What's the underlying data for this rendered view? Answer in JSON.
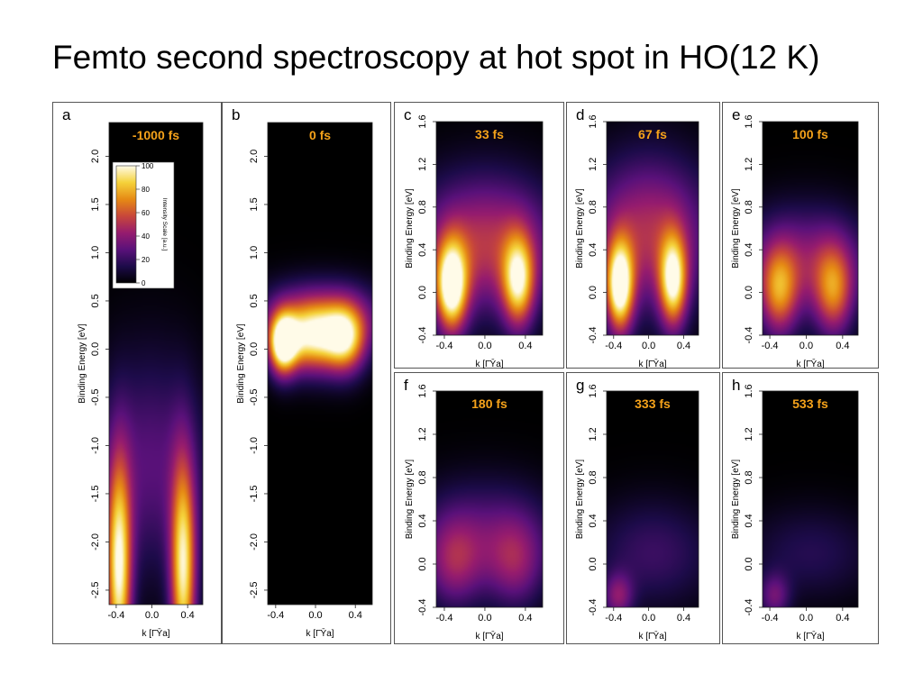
{
  "title": "Femto second spectroscopy at hot spot in HO(12 K)",
  "colors": {
    "panel_border": "#555555",
    "time_label": "#f5a21a",
    "cmap_stops": [
      "#000000",
      "#1d0b4a",
      "#5a117a",
      "#961c6e",
      "#c8473a",
      "#e68a14",
      "#f5d23a",
      "#fffbe8"
    ]
  },
  "colorbar": {
    "label": "Intensity Scale [a.u.]",
    "ticks": [
      "100",
      "80",
      "60",
      "40",
      "20",
      "0"
    ]
  },
  "chart_data": [
    {
      "type": "heatmap",
      "panel": "a",
      "time_label": "-1000 fs",
      "xlabel": "k [Γ̄Ȳa]",
      "ylabel": "Binding Energy [eV]",
      "xlim": [
        -0.48,
        0.57
      ],
      "ylim": [
        -2.65,
        2.35
      ],
      "xticks": [
        "-0.4",
        "0.0",
        "0.4"
      ],
      "xtick_values": [
        -0.4,
        0.0,
        0.4
      ],
      "yticks": [
        "2.0",
        "1.5",
        "1.0",
        "0.5",
        "0.0",
        "-0.5",
        "-1.0",
        "-1.5",
        "-2.0",
        "-2.5"
      ],
      "ytick_values": [
        2.0,
        1.5,
        1.0,
        0.5,
        0.0,
        -0.5,
        -1.0,
        -1.5,
        -2.0,
        -2.5
      ],
      "intensity_blobs": [
        {
          "k": -0.37,
          "E": -2.3,
          "sk": 0.1,
          "sE": 0.8,
          "I": 95
        },
        {
          "k": 0.35,
          "E": -2.3,
          "sk": 0.1,
          "sE": 0.8,
          "I": 90
        },
        {
          "k": -0.02,
          "E": -1.2,
          "sk": 0.45,
          "sE": 0.8,
          "I": 28
        }
      ]
    },
    {
      "type": "heatmap",
      "panel": "b",
      "time_label": "0 fs",
      "xlabel": "k [Γ̄Ȳa]",
      "ylabel": "Binding Energy [eV]",
      "xlim": [
        -0.48,
        0.57
      ],
      "ylim": [
        -2.65,
        2.35
      ],
      "xticks": [
        "-0.4",
        "0.0",
        "0.4"
      ],
      "xtick_values": [
        -0.4,
        0.0,
        0.4
      ],
      "yticks": [
        "2.0",
        "1.5",
        "1.0",
        "0.5",
        "0.0",
        "-0.5",
        "-1.0",
        "-1.5",
        "-2.0",
        "-2.5"
      ],
      "ytick_values": [
        2.0,
        1.5,
        1.0,
        0.5,
        0.0,
        -0.5,
        -1.0,
        -1.5,
        -2.0,
        -2.5
      ],
      "intensity_blobs": [
        {
          "k": -0.33,
          "E": 0.05,
          "sk": 0.1,
          "sE": 0.22,
          "I": 100
        },
        {
          "k": -0.05,
          "E": 0.1,
          "sk": 0.2,
          "sE": 0.25,
          "I": 75
        },
        {
          "k": 0.3,
          "E": 0.1,
          "sk": 0.15,
          "sE": 0.25,
          "I": 78
        },
        {
          "k": 0.05,
          "E": 0.35,
          "sk": 0.45,
          "sE": 0.25,
          "I": 40
        }
      ]
    },
    {
      "type": "heatmap",
      "panel": "c",
      "time_label": "33 fs",
      "xlabel": "k [Γ̄Ȳa]",
      "ylabel": "Binding Energy [eV]",
      "xlim": [
        -0.48,
        0.57
      ],
      "ylim": [
        -0.4,
        1.6
      ],
      "xticks": [
        "-0.4",
        "0.0",
        "0.4"
      ],
      "xtick_values": [
        -0.4,
        0.0,
        0.4
      ],
      "yticks": [
        "1.6",
        "1.2",
        "0.8",
        "0.4",
        "0.0",
        "-0.4"
      ],
      "ytick_values": [
        1.6,
        1.2,
        0.8,
        0.4,
        0.0,
        -0.4
      ],
      "intensity_blobs": [
        {
          "k": -0.33,
          "E": 0.05,
          "sk": 0.11,
          "sE": 0.3,
          "I": 100
        },
        {
          "k": 0.33,
          "E": 0.1,
          "sk": 0.11,
          "sE": 0.3,
          "I": 78
        },
        {
          "k": 0.0,
          "E": 0.45,
          "sk": 0.5,
          "sE": 0.45,
          "I": 52
        }
      ]
    },
    {
      "type": "heatmap",
      "panel": "d",
      "time_label": "67 fs",
      "xlabel": "k [Γ̄Ȳa]",
      "ylabel": "Binding Energy [eV]",
      "xlim": [
        -0.48,
        0.57
      ],
      "ylim": [
        -0.4,
        1.6
      ],
      "xticks": [
        "-0.4",
        "0.0",
        "0.4"
      ],
      "xtick_values": [
        -0.4,
        0.0,
        0.4
      ],
      "yticks": [
        "1.6",
        "1.2",
        "0.8",
        "0.4",
        "0.0",
        "-0.4"
      ],
      "ytick_values": [
        1.6,
        1.2,
        0.8,
        0.4,
        0.0,
        -0.4
      ],
      "intensity_blobs": [
        {
          "k": -0.33,
          "E": 0.05,
          "sk": 0.11,
          "sE": 0.3,
          "I": 100
        },
        {
          "k": 0.28,
          "E": 0.1,
          "sk": 0.11,
          "sE": 0.3,
          "I": 85
        },
        {
          "k": 0.0,
          "E": 0.55,
          "sk": 0.5,
          "sE": 0.5,
          "I": 50
        }
      ]
    },
    {
      "type": "heatmap",
      "panel": "e",
      "time_label": "100 fs",
      "xlabel": "k [Γ̄Ȳa]",
      "ylabel": "Binding Energy [eV]",
      "xlim": [
        -0.48,
        0.57
      ],
      "ylim": [
        -0.4,
        1.6
      ],
      "xticks": [
        "-0.4",
        "0.0",
        "0.4"
      ],
      "xtick_values": [
        -0.4,
        0.0,
        0.4
      ],
      "yticks": [
        "1.6",
        "1.2",
        "0.8",
        "0.4",
        "0.0",
        "-0.4"
      ],
      "ytick_values": [
        1.6,
        1.2,
        0.8,
        0.4,
        0.0,
        -0.4
      ],
      "intensity_blobs": [
        {
          "k": -0.3,
          "E": 0.0,
          "sk": 0.15,
          "sE": 0.3,
          "I": 58
        },
        {
          "k": 0.3,
          "E": 0.0,
          "sk": 0.15,
          "sE": 0.3,
          "I": 54
        },
        {
          "k": 0.0,
          "E": 0.3,
          "sk": 0.5,
          "sE": 0.35,
          "I": 38
        }
      ]
    },
    {
      "type": "heatmap",
      "panel": "f",
      "time_label": "180 fs",
      "xlabel": "k [Γ̄Ȳa]",
      "ylabel": "Binding Energy [eV]",
      "xlim": [
        -0.48,
        0.57
      ],
      "ylim": [
        -0.4,
        1.6
      ],
      "xticks": [
        "-0.4",
        "0.0",
        "0.4"
      ],
      "xtick_values": [
        -0.4,
        0.0,
        0.4
      ],
      "yticks": [
        "1.6",
        "1.2",
        "0.8",
        "0.4",
        "0.0",
        "-0.4"
      ],
      "ytick_values": [
        1.6,
        1.2,
        0.8,
        0.4,
        0.0,
        -0.4
      ],
      "intensity_blobs": [
        {
          "k": -0.3,
          "E": 0.0,
          "sk": 0.2,
          "sE": 0.3,
          "I": 34
        },
        {
          "k": 0.3,
          "E": 0.0,
          "sk": 0.2,
          "sE": 0.3,
          "I": 32
        },
        {
          "k": 0.0,
          "E": 0.3,
          "sk": 0.5,
          "sE": 0.35,
          "I": 25
        }
      ]
    },
    {
      "type": "heatmap",
      "panel": "g",
      "time_label": "333 fs",
      "xlabel": "k [Γ̄Ȳa]",
      "ylabel": "Binding Energy [eV]",
      "xlim": [
        -0.48,
        0.57
      ],
      "ylim": [
        -0.4,
        1.6
      ],
      "xticks": [
        "-0.4",
        "0.0",
        "0.4"
      ],
      "xtick_values": [
        -0.4,
        0.0,
        0.4
      ],
      "yticks": [
        "1.6",
        "1.2",
        "0.8",
        "0.4",
        "0.0",
        "-0.4"
      ],
      "ytick_values": [
        1.6,
        1.2,
        0.8,
        0.4,
        0.0,
        -0.4
      ],
      "intensity_blobs": [
        {
          "k": -0.35,
          "E": -0.3,
          "sk": 0.12,
          "sE": 0.15,
          "I": 34
        },
        {
          "k": 0.05,
          "E": 0.1,
          "sk": 0.5,
          "sE": 0.35,
          "I": 21
        }
      ]
    },
    {
      "type": "heatmap",
      "panel": "h",
      "time_label": "533 fs",
      "xlabel": "k [Γ̄Ȳa]",
      "ylabel": "Binding Energy [eV]",
      "xlim": [
        -0.48,
        0.57
      ],
      "ylim": [
        -0.4,
        1.6
      ],
      "xticks": [
        "-0.4",
        "0.0",
        "0.4"
      ],
      "xtick_values": [
        -0.4,
        0.0,
        0.4
      ],
      "yticks": [
        "1.6",
        "1.2",
        "0.8",
        "0.4",
        "0.0",
        "-0.4"
      ],
      "ytick_values": [
        1.6,
        1.2,
        0.8,
        0.4,
        0.0,
        -0.4
      ],
      "intensity_blobs": [
        {
          "k": -0.35,
          "E": -0.3,
          "sk": 0.12,
          "sE": 0.15,
          "I": 30
        },
        {
          "k": 0.05,
          "E": 0.1,
          "sk": 0.5,
          "sE": 0.3,
          "I": 16
        }
      ]
    }
  ]
}
